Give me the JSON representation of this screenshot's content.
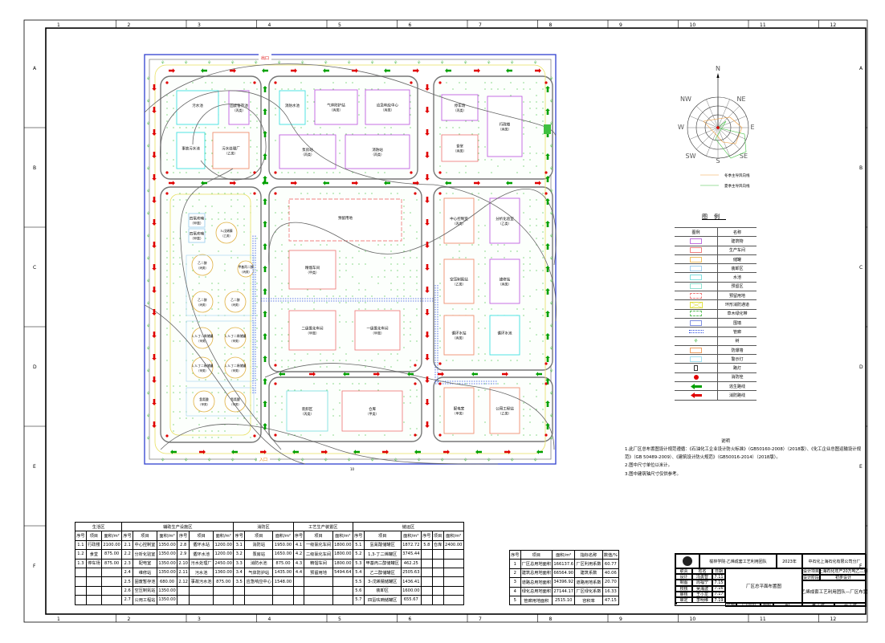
{
  "frame": {
    "columns": [
      "1",
      "2",
      "3",
      "4",
      "5",
      "6",
      "7",
      "8",
      "9",
      "10",
      "11",
      "12"
    ],
    "rows": [
      "A",
      "B",
      "C",
      "D",
      "E",
      "F"
    ]
  },
  "site": {
    "gate_top": "出口",
    "gate_bottom": "入口",
    "road_label": "10",
    "buildings": [
      {
        "name": "污水池",
        "cls": ""
      },
      {
        "name": "固废暂存池",
        "cls": "（丙类）"
      },
      {
        "name": "事故污水池",
        "cls": ""
      },
      {
        "name": "污水处理厂",
        "cls": "（乙类）"
      },
      {
        "name": "消防水池",
        "cls": ""
      },
      {
        "name": "气体防护站",
        "cls": "（丙类）"
      },
      {
        "name": "应急响应中心",
        "cls": "（丙类）"
      },
      {
        "name": "泵房站",
        "cls": "（丙类）"
      },
      {
        "name": "消防站",
        "cls": "（丙类）"
      },
      {
        "name": "停车场",
        "cls": "（丙类）"
      },
      {
        "name": "食堂",
        "cls": "（丙类）"
      },
      {
        "name": "行政楼",
        "cls": "（丙类）"
      },
      {
        "name": "预留用地",
        "cls": ""
      },
      {
        "name": "精馏车间",
        "cls": "（甲类）"
      },
      {
        "name": "二级氯化车间",
        "cls": "（甲类）"
      },
      {
        "name": "一级氯化车间",
        "cls": "（甲类）"
      },
      {
        "name": "中心控制室",
        "cls": "（丙类）"
      },
      {
        "name": "分析化验室",
        "cls": "（乙类）"
      },
      {
        "name": "空压制氮站",
        "cls": "（乙类）"
      },
      {
        "name": "维修站",
        "cls": "（丙类）"
      },
      {
        "name": "循环水站",
        "cls": "（丙类）"
      },
      {
        "name": "循环水池",
        "cls": ""
      },
      {
        "name": "装卸区",
        "cls": "（丙类）"
      },
      {
        "name": "仓库",
        "cls": "（甲类）"
      },
      {
        "name": "配电室",
        "cls": "（甲类）"
      },
      {
        "name": "公用工程站",
        "cls": "（乙类）"
      },
      {
        "name": "四氢呋喃",
        "cls": "（甲类）"
      },
      {
        "name": "四氢呋喃",
        "cls": "（甲类）"
      }
    ],
    "tanks": [
      {
        "name": "3-戊烯腈",
        "cls": "（乙类）"
      },
      {
        "name": "甲基丙二醇",
        "cls": "（丙类）"
      },
      {
        "name": "乙二醇",
        "cls": "（丙类）"
      },
      {
        "name": "乙二醇",
        "cls": "（丙类）"
      },
      {
        "name": "乙二醇",
        "cls": "（丙类）"
      },
      {
        "name": "1,3-丁二烯储罐",
        "cls": "（甲类）"
      },
      {
        "name": "1,3-丁二烯储罐",
        "cls": "（甲类）"
      },
      {
        "name": "1,3-丁二烯储罐",
        "cls": "（甲类）"
      },
      {
        "name": "1,3-丁二烯储罐",
        "cls": "（甲类）"
      },
      {
        "name": "氢氰酸",
        "cls": "（甲类）"
      },
      {
        "name": "氢氰酸",
        "cls": "（甲类）"
      }
    ]
  },
  "compass": {
    "labels": [
      "N",
      "NE",
      "E",
      "SE",
      "S",
      "SW",
      "W",
      "NW"
    ],
    "winter": "冬季主导风向线",
    "summer": "夏季主导风向线",
    "winter_color": "#f0a040",
    "summer_color": "#40c040"
  },
  "legend": {
    "title": "图例",
    "col_symbol": "图例",
    "col_name": "名称",
    "items": [
      {
        "sym": "rect",
        "color": "#c070e0",
        "name": "建筑物"
      },
      {
        "sym": "rect",
        "color": "#f08080",
        "name": "生产车间"
      },
      {
        "sym": "rect",
        "color": "#f0c060",
        "name": "储罐"
      },
      {
        "sym": "rect",
        "color": "#a0d0f0",
        "name": "装卸区"
      },
      {
        "sym": "rect",
        "color": "#80e0e0",
        "name": "水池"
      },
      {
        "sym": "rect",
        "color": "#90e0d0",
        "name": "预留区"
      },
      {
        "sym": "dash",
        "color": "#f08080",
        "name": "预留用地"
      },
      {
        "sym": "cross",
        "color": "#e0e040",
        "name": "环形消防通道"
      },
      {
        "sym": "dots",
        "color": "#60c060",
        "name": "草木绿化带"
      },
      {
        "sym": "rect",
        "color": "#8090e0",
        "name": "围墙"
      },
      {
        "sym": "pipe",
        "color": "#3050e0",
        "name": "管廊"
      },
      {
        "sym": "tree",
        "color": "#60c060",
        "name": "树"
      },
      {
        "sym": "rect",
        "color": "#f0a060",
        "name": "防爆墙"
      },
      {
        "sym": "rect",
        "color": "#a0e0f0",
        "name": "警示灯"
      },
      {
        "sym": "lamp",
        "color": "#333333",
        "name": "路灯"
      },
      {
        "sym": "hydrant",
        "color": "#e00000",
        "name": "消防栓"
      },
      {
        "sym": "arrow",
        "color": "#00a000",
        "name": "逃生路线"
      },
      {
        "sym": "arrow",
        "color": "#e00000",
        "name": "消防路线"
      }
    ]
  },
  "notes": {
    "title": "说明",
    "lines": [
      "1.此厂区总布置图设计规范遵循：《石油化工企业设计防火标准》（GB50160-2008）（2018版）、《化工企业总图运输设计规范》（GB 50489-2009）、《建筑设计防火规范》（GB50016-2014）（2018版）。",
      "2.图中尺寸单位以米计。",
      "3.图中建筑轴尺寸仅供参考。"
    ]
  },
  "area_table": {
    "sections": [
      {
        "title": "生活区",
        "span": 3
      },
      {
        "title": "辅助生产设施区",
        "span": 6
      },
      {
        "title": "消防区",
        "span": 3
      },
      {
        "title": "工艺生产装置区",
        "span": 3
      },
      {
        "title": "储运区",
        "span": 6
      }
    ],
    "headers": [
      "序号",
      "项目",
      "面积/m²"
    ],
    "rows": [
      [
        "1.1",
        "行政楼",
        "2100.00",
        "2.1",
        "中心控制室",
        "1350.00",
        "2.8",
        "循环水站",
        "1200.00",
        "3.1",
        "消防站",
        "1950.00",
        "4.1",
        "一级氯化车间",
        "1800.00",
        "5.1",
        "氢氰酸储罐区",
        "1872.72",
        "5.8",
        "仓库",
        "2400.00"
      ],
      [
        "1.2",
        "食堂",
        "875.00",
        "2.2",
        "分析化验室",
        "1350.00",
        "2.9",
        "循环水池",
        "1200.00",
        "3.2",
        "泵房站",
        "1650.00",
        "4.2",
        "二级氯化车间",
        "1800.00",
        "5.2",
        "1,3-丁二烯罐区",
        "3745.44",
        "",
        "",
        ""
      ],
      [
        "1.3",
        "停车场",
        "875.00",
        "2.3",
        "配电室",
        "1350.00",
        "2.10",
        "污水处理厂",
        "2450.00",
        "3.3",
        "消防水池",
        "875.00",
        "4.3",
        "精馏车间",
        "1800.00",
        "5.3",
        "甲基丙二醇储罐区",
        "462.25",
        "",
        "",
        ""
      ],
      [
        "",
        "",
        "",
        "2.4",
        "维修站",
        "1350.00",
        "2.11",
        "污水池",
        "1360.00",
        "3.4",
        "气体防护站",
        "1435.00",
        "4.4",
        "预留用地",
        "5494.64",
        "5.4",
        "乙二醇储罐区",
        "2505.63",
        "",
        "",
        ""
      ],
      [
        "",
        "",
        "",
        "2.5",
        "固废暂存池",
        "680.00",
        "2.12",
        "事故污水池",
        "875.00",
        "3.5",
        "应急响应中心",
        "1548.00",
        "",
        "",
        "",
        "5.5",
        "3-戊烯腈储罐区",
        "1436.41",
        "",
        "",
        ""
      ],
      [
        "",
        "",
        "",
        "2.6",
        "空压制氮站",
        "1350.00",
        "",
        "",
        "",
        "",
        "",
        "",
        "",
        "",
        "",
        "5.6",
        "装卸区",
        "1600.00",
        "",
        "",
        ""
      ],
      [
        "",
        "",
        "",
        "2.7",
        "公用工程站",
        "1350.00",
        "",
        "",
        "",
        "",
        "",
        "",
        "",
        "",
        "",
        "5.7",
        "四氢呋喃储罐区",
        "655.67",
        "",
        "",
        ""
      ]
    ]
  },
  "index_table": {
    "headers": [
      "序号",
      "项目",
      "面积/m²",
      "指标名称",
      "数值/%"
    ],
    "rows": [
      [
        "1",
        "厂区总用地面积",
        "166137.6",
        "厂区利用系数",
        "60.77"
      ],
      [
        "2",
        "建筑总用地面积",
        "66564.90",
        "建筑系数",
        "40.06"
      ],
      [
        "3",
        "道路总用地面积",
        "34396.92",
        "道路用地系数",
        "20.70"
      ],
      [
        "4",
        "绿化总用地面积",
        "27144.17",
        "厂区绿化系数",
        "16.33"
      ],
      [
        "5",
        "管廊用地面积",
        "2515.10",
        "容积率",
        "47.15"
      ]
    ]
  },
  "title_block": {
    "school": "榆林学院·乙烯成套工艺利用团队",
    "year": "2023年",
    "company": "中石化上海石化有限公司分厂",
    "roles": [
      [
        "职责",
        "姓名",
        "日期"
      ],
      [
        "设计",
        "冯勇智",
        "7.11"
      ],
      [
        "制图",
        "周福宁",
        "7.15"
      ],
      [
        "校核",
        "吴海波",
        "7.16"
      ],
      [
        "审核",
        "王小龙",
        "7.17"
      ],
      [
        "审定",
        "李明维",
        "7.19"
      ]
    ],
    "drawing": "厂区总平面布置图",
    "proj_label": "设计项目",
    "proj": "上海石化年产20万吨乙二腈",
    "stage_label": "设计阶段",
    "stage": "初步设计",
    "subtitle": "乙烯成套工艺利用团队—厂区布置",
    "scale_label": "比例",
    "scale": "1:1000",
    "size_label": "图幅",
    "size": "A1",
    "sheet": "第 1 张",
    "total": "共 1 张"
  }
}
